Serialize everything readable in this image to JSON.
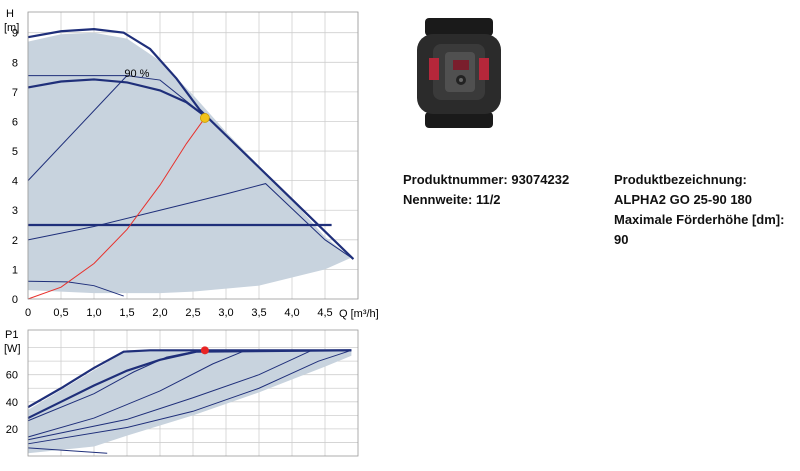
{
  "chart_data": [
    {
      "type": "line",
      "xlabel": "Q [m³/h]",
      "ylabel": "H [m]",
      "xlim": [
        0,
        5.0
      ],
      "ylim": [
        0,
        9.7
      ],
      "x_ticks": [
        "0",
        "0,5",
        "1,0",
        "1,5",
        "2,0",
        "2,5",
        "3,0",
        "3,5",
        "4,0",
        "4,5"
      ],
      "y_ticks": [
        "0",
        "1",
        "2",
        "3",
        "4",
        "5",
        "6",
        "7",
        "8",
        "9"
      ],
      "grid": true,
      "annotations": [
        {
          "text": "90 %",
          "x": 1.65,
          "y": 7.5
        }
      ],
      "envelope": [
        [
          0,
          8.7
        ],
        [
          0.5,
          8.95
        ],
        [
          1.0,
          9.0
        ],
        [
          1.5,
          8.8
        ],
        [
          2.0,
          8.05
        ],
        [
          2.5,
          6.9
        ],
        [
          3.0,
          5.65
        ],
        [
          3.5,
          4.5
        ],
        [
          4.0,
          3.35
        ],
        [
          4.5,
          2.1
        ],
        [
          4.9,
          1.4
        ],
        [
          4.5,
          1.0
        ],
        [
          3.5,
          0.45
        ],
        [
          2.5,
          0.25
        ],
        [
          2.0,
          0.2
        ],
        [
          1.0,
          0.2
        ],
        [
          0,
          0.3
        ]
      ],
      "series": [
        {
          "values": [
            [
              0,
              8.85
            ],
            [
              0.5,
              9.05
            ],
            [
              1.0,
              9.12
            ],
            [
              1.45,
              9.0
            ],
            [
              1.85,
              8.45
            ],
            [
              2.25,
              7.45
            ],
            [
              2.6,
              6.4
            ],
            [
              3.2,
              5.1
            ],
            [
              3.8,
              3.8
            ],
            [
              4.4,
              2.5
            ],
            [
              4.93,
              1.35
            ]
          ]
        },
        {
          "values": [
            [
              0,
              7.15
            ],
            [
              0.5,
              7.35
            ],
            [
              1.0,
              7.42
            ],
            [
              1.5,
              7.32
            ],
            [
              2.0,
              7.05
            ],
            [
              2.4,
              6.65
            ],
            [
              2.7,
              6.15
            ]
          ]
        },
        {
          "values": [
            [
              0,
              7.55
            ],
            [
              1.5,
              7.55
            ],
            [
              2.0,
              7.4
            ],
            [
              2.7,
              6.15
            ]
          ]
        },
        {
          "values": [
            [
              0,
              4.0
            ],
            [
              1.5,
              7.55
            ]
          ]
        },
        {
          "values": [
            [
              0,
              2.0
            ],
            [
              1.0,
              2.45
            ],
            [
              2.0,
              3.0
            ],
            [
              3.0,
              3.55
            ],
            [
              3.6,
              3.9
            ],
            [
              4.5,
              2.0
            ],
            [
              4.93,
              1.35
            ]
          ]
        },
        {
          "values": [
            [
              0,
              2.5
            ],
            [
              4.6,
              2.5
            ]
          ]
        },
        {
          "values": [
            [
              0,
              0.6
            ],
            [
              0.6,
              0.58
            ],
            [
              1.0,
              0.45
            ],
            [
              1.45,
              0.1
            ]
          ]
        },
        {
          "values": [
            [
              0,
              0
            ],
            [
              0.5,
              0.4
            ],
            [
              1.0,
              1.2
            ],
            [
              1.5,
              2.35
            ],
            [
              2.0,
              3.85
            ],
            [
              2.4,
              5.25
            ],
            [
              2.68,
              6.12
            ]
          ]
        }
      ],
      "operating_point": {
        "x": 2.68,
        "y": 6.12
      }
    },
    {
      "type": "line",
      "ylabel": "P1 [W]",
      "xlim": [
        0,
        5.0
      ],
      "ylim": [
        0,
        93
      ],
      "y_ticks": [
        "20",
        "40",
        "60"
      ],
      "grid": true,
      "series": [
        {
          "values": [
            [
              0,
              36
            ],
            [
              0.5,
              50
            ],
            [
              1.0,
              65
            ],
            [
              1.45,
              77
            ],
            [
              1.85,
              78
            ],
            [
              4.9,
              78
            ]
          ]
        },
        {
          "values": [
            [
              0,
              28
            ],
            [
              0.5,
              40
            ],
            [
              1.0,
              52
            ],
            [
              1.5,
              63
            ],
            [
              2.0,
              71
            ],
            [
              2.55,
              77
            ],
            [
              4.9,
              78
            ]
          ]
        },
        {
          "values": [
            [
              0,
              26
            ],
            [
              1.0,
              46
            ],
            [
              1.6,
              62
            ],
            [
              2.1,
              73
            ],
            [
              2.6,
              78
            ]
          ]
        },
        {
          "values": [
            [
              0,
              14
            ],
            [
              1.0,
              28
            ],
            [
              2.0,
              48
            ],
            [
              2.8,
              68
            ],
            [
              3.3,
              78
            ]
          ]
        },
        {
          "values": [
            [
              0,
              12
            ],
            [
              1.5,
              27
            ],
            [
              2.5,
              43
            ],
            [
              3.5,
              60
            ],
            [
              4.3,
              78
            ]
          ]
        },
        {
          "values": [
            [
              0,
              9
            ],
            [
              1.5,
              21
            ],
            [
              2.5,
              33
            ],
            [
              3.5,
              50
            ],
            [
              4.4,
              70
            ],
            [
              4.9,
              78
            ]
          ]
        },
        {
          "values": [
            [
              0,
              6
            ],
            [
              1.2,
              2
            ]
          ]
        }
      ],
      "envelope": [
        [
          0,
          34
        ],
        [
          1.5,
          78
        ],
        [
          4.9,
          78
        ],
        [
          4.9,
          74
        ],
        [
          4.5,
          66
        ],
        [
          3.5,
          47
        ],
        [
          2.5,
          30
        ],
        [
          1.5,
          15
        ],
        [
          1.0,
          7
        ],
        [
          0,
          2
        ]
      ],
      "operating_point": {
        "x": 2.68,
        "y": 78
      }
    }
  ],
  "product": {
    "image": "pump-photo",
    "number_label": "Produktnummer: 93074232",
    "nominal_size_label": "Nennweite: 11/2",
    "designation_label": "Produktbezeichnung:",
    "designation_value": "ALPHA2 GO 25-90 180",
    "max_head_label": "Maximale Förderhöhe [dm]:",
    "max_head_value": "90"
  },
  "colors": {
    "curve": "#1f2f7a",
    "envelope": "#c8d3de",
    "system_curve": "#e8302b",
    "op_point_top": "#f2c21a",
    "op_point_bottom": "#e82424",
    "grid": "#cfcfcf"
  }
}
